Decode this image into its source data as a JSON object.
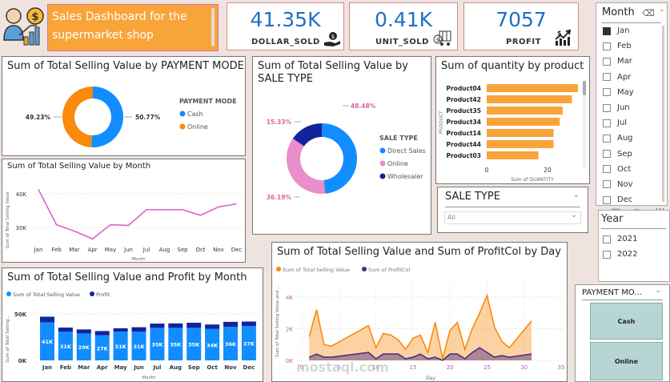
{
  "header": {
    "title": "Sales Dashboard for the supermarket shop",
    "logo_icon": "businessman-growth-icon",
    "bg_color": "#f9a43a"
  },
  "kpis": [
    {
      "value": "41.35K",
      "label": "DOLLAR_SOLD",
      "icon": "money-hand-icon"
    },
    {
      "value": "0.41K",
      "label": "UNIT_SOLD",
      "icon": "shopping-cart-icon"
    },
    {
      "value": "7057",
      "label": "PROFIT",
      "icon": "profit-growth-icon"
    }
  ],
  "month_slicer": {
    "title": "Month",
    "items": [
      {
        "label": "Jan",
        "checked": true
      },
      {
        "label": "Feb",
        "checked": false
      },
      {
        "label": "Mar",
        "checked": false
      },
      {
        "label": "Apr",
        "checked": false
      },
      {
        "label": "May",
        "checked": false
      },
      {
        "label": "Jun",
        "checked": false
      },
      {
        "label": "Jul",
        "checked": false
      },
      {
        "label": "Aug",
        "checked": false
      },
      {
        "label": "Sep",
        "checked": false
      },
      {
        "label": "Oct",
        "checked": false
      },
      {
        "label": "Nov",
        "checked": false
      },
      {
        "label": "Dec",
        "checked": false
      }
    ]
  },
  "year_slicer": {
    "title": "Year",
    "items": [
      {
        "label": "2021",
        "checked": false
      },
      {
        "label": "2022",
        "checked": false
      }
    ]
  },
  "sale_type_slicer": {
    "title": "SALE TYPE",
    "selected": "All"
  },
  "payment_slicer": {
    "title": "PAYMENT MO...",
    "buttons": [
      "Cash",
      "Online"
    ]
  },
  "chart_data": [
    {
      "id": "payment_mode",
      "type": "pie",
      "title": "Sum of Total Selling Value by PAYMENT MODE",
      "legend_title": "PAYMENT MODE",
      "legend_position": "right",
      "labels": [
        "Cash",
        "Online"
      ],
      "values": [
        50.77,
        49.23
      ],
      "value_labels": [
        "50.77%",
        "49.23%"
      ],
      "colors": [
        "#118dff",
        "#f98a0c"
      ]
    },
    {
      "id": "sale_type",
      "type": "pie",
      "title": "Sum of Total Selling Value by SALE TYPE",
      "legend_title": "SALE TYPE",
      "legend_position": "right",
      "labels": [
        "Direct Sales",
        "Online",
        "Wholesaler"
      ],
      "values": [
        48.48,
        36.19,
        15.33
      ],
      "value_labels": [
        "48.48%",
        "36.19%",
        "15.33%"
      ],
      "colors": [
        "#118dff",
        "#e88ecb",
        "#12239e"
      ]
    },
    {
      "id": "quantity_by_product",
      "type": "bar",
      "orientation": "horizontal",
      "title": "Sum of quantity by product",
      "xlabel": "Sum of QUANTITY",
      "ylabel": "PRODUCT",
      "categories": [
        "Product04",
        "Product42",
        "Product35",
        "Product34",
        "Product14",
        "Product44",
        "Product03"
      ],
      "values": [
        30,
        28,
        25,
        24,
        22,
        22,
        17
      ],
      "xticks": [
        "0",
        "20"
      ],
      "xlim": [
        0,
        30
      ],
      "color": "#f9a43a"
    },
    {
      "id": "selling_by_month",
      "type": "line",
      "title": "Sum of Total Selling Value by Month",
      "xlabel": "Month",
      "ylabel": "Sum of Total Selling Value",
      "categories": [
        "Jan",
        "Feb",
        "Mar",
        "Apr",
        "May",
        "Jun",
        "Jul",
        "Aug",
        "Sep",
        "Oct",
        "Nov",
        "Dec"
      ],
      "values": [
        41300,
        30800,
        28900,
        26600,
        30800,
        30600,
        35300,
        35300,
        35300,
        33600,
        36100,
        37000
      ],
      "yticks": [
        "30K",
        "40K"
      ],
      "ylim": [
        24000,
        45000
      ],
      "grid": true,
      "color": "#d765c6"
    },
    {
      "id": "selling_profit_by_month",
      "type": "bar",
      "stacked": true,
      "title": "Sum of Total Selling Value and Profit by Month",
      "xlabel": "Month",
      "ylabel": "Sum of Total Selling...",
      "legend_position": "top-left",
      "categories": [
        "Jan",
        "Feb",
        "Mar",
        "Apr",
        "May",
        "Jun",
        "Jul",
        "Aug",
        "Sep",
        "Oct",
        "Nov",
        "Dec"
      ],
      "series": [
        {
          "name": "Sum of Total Selling Value",
          "values": [
            41000,
            31000,
            29000,
            27000,
            31000,
            31000,
            35000,
            35000,
            35000,
            34000,
            36000,
            37000
          ],
          "data_labels": [
            "41K",
            "31K",
            "29K",
            "27K",
            "31K",
            "31K",
            "35K",
            "35K",
            "35K",
            "34K",
            "36K",
            "37K"
          ],
          "color": "#118dff"
        },
        {
          "name": "Profit",
          "values": [
            6000,
            4300,
            4300,
            4600,
            3600,
            4700,
            4600,
            4800,
            5500,
            4600,
            5500,
            4800
          ],
          "color": "#12239e"
        }
      ],
      "yticks": [
        "0K",
        "50K"
      ],
      "ylim": [
        0,
        50000
      ],
      "grid": true
    },
    {
      "id": "selling_profit_by_day",
      "type": "area",
      "title": "Sum of Total Selling Value and Sum of ProfitCol by Day",
      "xlabel": "Day",
      "ylabel": "Sum of Total Selling Value and ...",
      "legend_position": "top-left",
      "x": [
        1,
        2,
        3,
        4,
        9,
        10,
        11,
        12,
        13,
        14,
        15,
        16,
        17,
        18,
        19,
        20,
        21,
        22,
        23,
        24,
        25,
        26,
        27,
        28,
        31
      ],
      "series": [
        {
          "name": "Sum of Total Selling Value",
          "values": [
            1500,
            3200,
            1000,
            900,
            2200,
            800,
            1700,
            1600,
            1300,
            700,
            1400,
            1600,
            500,
            2400,
            100,
            1900,
            2400,
            700,
            2000,
            3000,
            4100,
            2100,
            1200,
            800,
            2500
          ],
          "color": "#f98a0c"
        },
        {
          "name": "Sum of ProfitCol",
          "values": [
            200,
            400,
            200,
            200,
            500,
            100,
            400,
            400,
            400,
            100,
            200,
            400,
            100,
            200,
            0,
            400,
            400,
            100,
            500,
            800,
            500,
            200,
            300,
            200,
            400
          ],
          "color": "#4b2e83"
        }
      ],
      "xticks": [
        "0",
        "5",
        "10",
        "15",
        "20",
        "25",
        "30",
        "35"
      ],
      "yticks": [
        "0K",
        "2K",
        "4K"
      ],
      "xlim": [
        0,
        35
      ],
      "ylim": [
        0,
        5000
      ],
      "grid": true
    }
  ],
  "watermark": "mostaql.com"
}
